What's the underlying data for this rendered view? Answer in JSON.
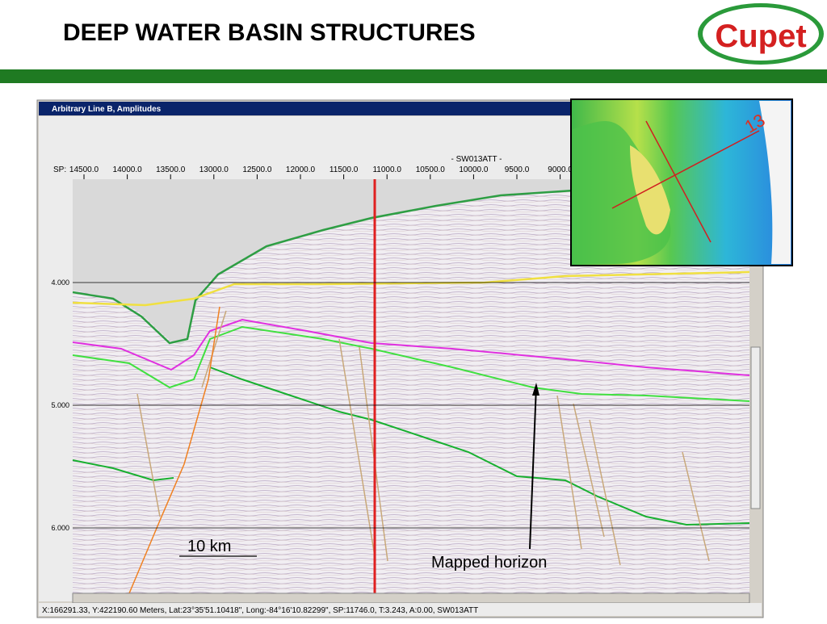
{
  "header": {
    "title": "DEEP WATER BASIN STRUCTURES",
    "logo": "Cupet"
  },
  "window": {
    "title": "Arbitrary Line B, Amplitudes",
    "sp_label": "SP:",
    "line_name": "- SW013ATT -",
    "sp_ticks": [
      "14500.0",
      "14000.0",
      "13500.0",
      "13000.0",
      "12500.0",
      "12000.0",
      "11500.0",
      "11000.0",
      "10500.0",
      "10000.0",
      "9500.0",
      "9000.0"
    ],
    "time_ticks": [
      "4.000",
      "5.000",
      "6.000"
    ],
    "status": "X:166291.33, Y:422190.60 Meters, Lat:23°35'51.10418\", Long:-84°16'10.82299\", SP:11746.0, T:3.243, A:0.00, SW013ATT"
  },
  "annotations": {
    "scale": "10 km",
    "horizon": "Mapped horizon",
    "map_line": "13"
  }
}
